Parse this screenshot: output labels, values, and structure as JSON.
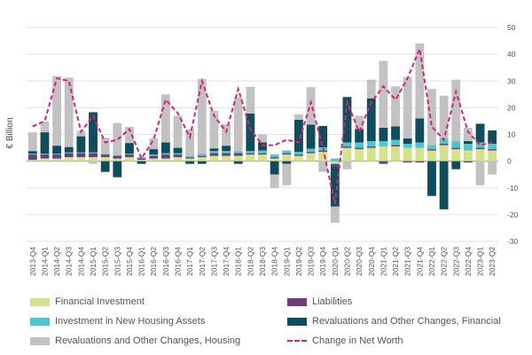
{
  "chart_data": {
    "type": "bar",
    "ylabel": "€ Billion",
    "ylim": [
      -30,
      50
    ],
    "yticks": [
      -30,
      -20,
      -10,
      0,
      10,
      20,
      30,
      40,
      50
    ],
    "grid": true,
    "legend_position": "bottom",
    "categories": [
      "2013-Q4",
      "2014-Q1",
      "2014-Q2",
      "2014-Q3",
      "2014-Q4",
      "2015-Q1",
      "2015-Q2",
      "2015-Q3",
      "2015-Q4",
      "2016-Q1",
      "2016-Q2",
      "2016-Q3",
      "2016-Q4",
      "2017-Q1",
      "2017-Q2",
      "2017-Q3",
      "2017-Q4",
      "2018-Q1",
      "2018-Q2",
      "2018-Q3",
      "2018-Q4",
      "2019-Q1",
      "2019-Q2",
      "2019-Q3",
      "2019-Q4",
      "2020-Q1",
      "2020-Q2",
      "2020-Q3",
      "2020-Q4",
      "2021-Q1",
      "2021-Q2",
      "2021-Q3",
      "2021-Q4",
      "2022-Q1",
      "2022-Q2",
      "2022-Q3",
      "2022-Q4",
      "2023-Q1",
      "2023-Q2"
    ],
    "series": [
      {
        "name": "Financial Investment",
        "kind": "bar",
        "color": "#d4e38a",
        "values": [
          0.5,
          1,
          1,
          1.5,
          1.5,
          1.5,
          1.5,
          1,
          1.5,
          0.5,
          1,
          1,
          1.5,
          1,
          1.5,
          2,
          2,
          2,
          2.5,
          2.5,
          1,
          2.5,
          2,
          3,
          3.5,
          -1,
          5,
          4.5,
          5,
          5.5,
          5.5,
          5,
          5,
          4,
          6,
          4.5,
          4,
          4.5,
          4
        ]
      },
      {
        "name": "Liabilities",
        "kind": "bar",
        "color": "#6b3e7a",
        "values": [
          2,
          1.5,
          1.5,
          1.5,
          1.5,
          1.5,
          1,
          1,
          1,
          0.5,
          1,
          1.5,
          1,
          0.5,
          0.5,
          1,
          1,
          1,
          0.5,
          0.5,
          0.5,
          0.5,
          0.5,
          0.5,
          0.5,
          -1,
          0.5,
          0.5,
          0.5,
          -1,
          0.5,
          -0.5,
          -0.5,
          0.5,
          0.5,
          0.5,
          -0.5,
          0.5,
          0.5
        ]
      },
      {
        "name": "Investment in New Housing Assets",
        "kind": "bar",
        "color": "#4cc6cf",
        "values": [
          0.3,
          0.3,
          0.3,
          0.3,
          0.3,
          0.3,
          0.3,
          0.3,
          0.3,
          0.5,
          0.5,
          0.5,
          0.5,
          0.5,
          0.7,
          0.8,
          0.8,
          0.8,
          0.8,
          1,
          1,
          1,
          1,
          1.2,
          1.2,
          1,
          1.5,
          2,
          2,
          2,
          2,
          1.5,
          2,
          1.5,
          2,
          2.5,
          2.5,
          2,
          2
        ]
      },
      {
        "name": "Revaluations and Other Changes, Financial",
        "kind": "bar",
        "color": "#0f4c5c",
        "values": [
          1,
          8,
          3,
          2,
          6,
          15,
          -4,
          -6,
          4,
          -1,
          2,
          4,
          2,
          -1,
          -1,
          1,
          2,
          -1,
          14,
          3,
          -5,
          -1,
          12,
          9,
          8,
          -15,
          17,
          5,
          16,
          5,
          5,
          2,
          9,
          -13,
          -18,
          -3,
          1,
          7,
          5
        ]
      },
      {
        "name": "Revaluations and Other Changes, Housing",
        "kind": "bar",
        "color": "#c2c2c2",
        "values": [
          7,
          4,
          26,
          26,
          2,
          -1,
          6,
          12,
          6,
          0,
          4,
          18,
          12,
          10,
          28,
          14,
          8,
          20,
          10,
          3,
          -5,
          -8,
          2,
          14,
          -4,
          -6,
          -3,
          5,
          7,
          25,
          15,
          23,
          28,
          21,
          16,
          23,
          5,
          -9,
          -5
        ]
      },
      {
        "name": "Change in Net Worth",
        "kind": "line",
        "color": "#d6237d",
        "values": [
          13,
          15,
          31,
          30,
          11,
          17,
          7,
          8,
          12,
          1,
          8,
          23,
          18,
          9,
          30,
          17,
          11,
          27,
          12,
          6,
          6,
          8,
          7,
          22,
          5,
          -16,
          22,
          11,
          22,
          28,
          23,
          31,
          42,
          13,
          8,
          26,
          11,
          6,
          7
        ]
      }
    ]
  }
}
